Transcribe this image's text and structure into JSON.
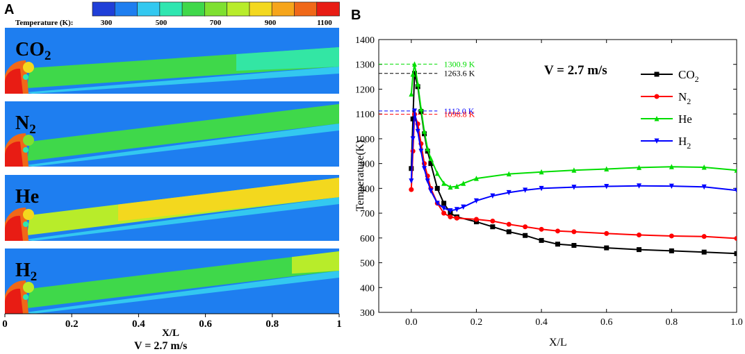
{
  "panel_a": {
    "label": "A",
    "colorbar": {
      "label": "Temperature (K):",
      "ticks": [
        "300",
        "500",
        "700",
        "900",
        "1100"
      ],
      "colors": [
        "#1f3fd8",
        "#1e7ef0",
        "#33c8f0",
        "#2fe6b0",
        "#3fd84a",
        "#7fe030",
        "#b8ec2a",
        "#f3d81e",
        "#f6a51a",
        "#f06818",
        "#e81c14"
      ]
    },
    "contours": [
      {
        "main": "CO",
        "sub": "2",
        "mid_color": "#3fd84a",
        "far_color": "#33e6a4",
        "ember_color": "#f3d81e"
      },
      {
        "main": "N",
        "sub": "2",
        "mid_color": "#3fd84a",
        "far_color": "#3fd84a",
        "ember_color": "#7fe030"
      },
      {
        "main": "He",
        "sub": "",
        "mid_color": "#b8ec2a",
        "far_color": "#f3d81e",
        "ember_color": "#f3d81e"
      },
      {
        "main": "H",
        "sub": "2",
        "mid_color": "#3fd84a",
        "far_color": "#b8ec2a",
        "ember_color": "#b8ec2a"
      }
    ],
    "x_ticks": [
      "0",
      "0.2",
      "0.4",
      "0.6",
      "0.8",
      "1"
    ],
    "x_label": "X/L",
    "caption": "V = 2.7 m/s"
  },
  "chart_data": {
    "type": "line",
    "panel_label": "B",
    "title": "V = 2.7 m/s",
    "xlabel": "X/L",
    "ylabel": "Temperature(K)",
    "xlim": [
      -0.1,
      1.0
    ],
    "ylim": [
      300,
      1400
    ],
    "x_ticks": [
      0.0,
      0.2,
      0.4,
      0.6,
      0.8,
      1.0
    ],
    "y_ticks": [
      300,
      400,
      500,
      600,
      700,
      800,
      900,
      1000,
      1100,
      1200,
      1300,
      1400
    ],
    "legend_position": "top-right",
    "series": [
      {
        "name": "CO",
        "sub": "2",
        "color": "#000000",
        "marker": "square",
        "points": [
          [
            0,
            880
          ],
          [
            0.005,
            1080
          ],
          [
            0.01,
            1263.6
          ],
          [
            0.02,
            1210
          ],
          [
            0.03,
            1110
          ],
          [
            0.04,
            1020
          ],
          [
            0.05,
            950
          ],
          [
            0.06,
            900
          ],
          [
            0.08,
            800
          ],
          [
            0.1,
            740
          ],
          [
            0.12,
            700
          ],
          [
            0.14,
            685
          ],
          [
            0.2,
            665
          ],
          [
            0.25,
            645
          ],
          [
            0.3,
            625
          ],
          [
            0.35,
            610
          ],
          [
            0.4,
            590
          ],
          [
            0.45,
            575
          ],
          [
            0.5,
            570
          ],
          [
            0.6,
            560
          ],
          [
            0.7,
            553
          ],
          [
            0.8,
            548
          ],
          [
            0.9,
            543
          ],
          [
            1.0,
            537
          ]
        ]
      },
      {
        "name": "N",
        "sub": "2",
        "color": "#ff0000",
        "marker": "circle",
        "points": [
          [
            0,
            795
          ],
          [
            0.005,
            950
          ],
          [
            0.01,
            1098.8
          ],
          [
            0.02,
            1060
          ],
          [
            0.03,
            980
          ],
          [
            0.04,
            900
          ],
          [
            0.05,
            850
          ],
          [
            0.06,
            800
          ],
          [
            0.08,
            740
          ],
          [
            0.1,
            700
          ],
          [
            0.12,
            685
          ],
          [
            0.14,
            680
          ],
          [
            0.2,
            675
          ],
          [
            0.25,
            668
          ],
          [
            0.3,
            655
          ],
          [
            0.35,
            645
          ],
          [
            0.4,
            635
          ],
          [
            0.45,
            628
          ],
          [
            0.5,
            625
          ],
          [
            0.6,
            618
          ],
          [
            0.7,
            612
          ],
          [
            0.8,
            608
          ],
          [
            0.9,
            606
          ],
          [
            1.0,
            598
          ]
        ]
      },
      {
        "name": "He",
        "sub": "",
        "color": "#00dd00",
        "marker": "triangle-up",
        "points": [
          [
            0,
            1180
          ],
          [
            0.005,
            1260
          ],
          [
            0.01,
            1300.9
          ],
          [
            0.02,
            1220
          ],
          [
            0.03,
            1120
          ],
          [
            0.04,
            1030
          ],
          [
            0.05,
            960
          ],
          [
            0.06,
            920
          ],
          [
            0.08,
            860
          ],
          [
            0.1,
            820
          ],
          [
            0.12,
            805
          ],
          [
            0.14,
            808
          ],
          [
            0.16,
            820
          ],
          [
            0.2,
            840
          ],
          [
            0.3,
            858
          ],
          [
            0.4,
            866
          ],
          [
            0.5,
            873
          ],
          [
            0.6,
            878
          ],
          [
            0.7,
            884
          ],
          [
            0.8,
            887
          ],
          [
            0.9,
            885
          ],
          [
            1.0,
            873
          ]
        ]
      },
      {
        "name": "H",
        "sub": "2",
        "color": "#0000ff",
        "marker": "triangle-down",
        "points": [
          [
            0,
            830
          ],
          [
            0.005,
            1000
          ],
          [
            0.01,
            1112.0
          ],
          [
            0.02,
            1030
          ],
          [
            0.03,
            950
          ],
          [
            0.04,
            880
          ],
          [
            0.05,
            830
          ],
          [
            0.06,
            790
          ],
          [
            0.08,
            740
          ],
          [
            0.1,
            720
          ],
          [
            0.12,
            710
          ],
          [
            0.14,
            715
          ],
          [
            0.16,
            725
          ],
          [
            0.2,
            750
          ],
          [
            0.25,
            770
          ],
          [
            0.3,
            783
          ],
          [
            0.35,
            793
          ],
          [
            0.4,
            800
          ],
          [
            0.5,
            805
          ],
          [
            0.6,
            808
          ],
          [
            0.7,
            810
          ],
          [
            0.8,
            809
          ],
          [
            0.9,
            806
          ],
          [
            1.0,
            792
          ]
        ]
      }
    ],
    "annotations": [
      {
        "text": "1300.9 K",
        "y": 1300.9,
        "color": "#00dd00"
      },
      {
        "text": "1263.6 K",
        "y": 1263.6,
        "color": "#000000"
      },
      {
        "text": "1112.0 K",
        "y": 1112.0,
        "color": "#0000ff"
      },
      {
        "text": "1098.8 K",
        "y": 1098.8,
        "color": "#ff0000"
      }
    ]
  }
}
